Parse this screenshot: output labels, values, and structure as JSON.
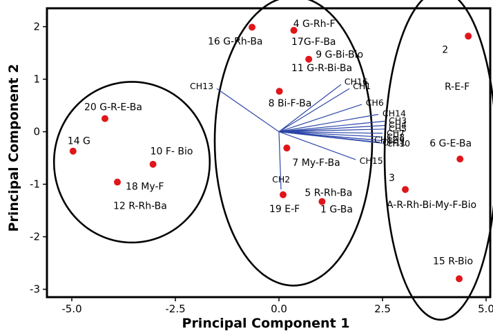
{
  "chart_data": {
    "type": "scatter",
    "xlabel": "Principal Component  1",
    "ylabel": "Principal Component 2",
    "xlim": [
      -5.6,
      5.1
    ],
    "ylim": [
      -3.15,
      2.35
    ],
    "xticks": [
      "-5.0",
      "-2.5",
      "0.0",
      "2.5",
      "5.0"
    ],
    "xtick_values": [
      -5.0,
      -2.5,
      0.0,
      2.5,
      5.0
    ],
    "yticks": [
      "2",
      "1",
      "0",
      "-1",
      "-2",
      "-3"
    ],
    "ytick_values": [
      2,
      1,
      0,
      -1,
      -2,
      -3
    ],
    "point_color": "#e0161b",
    "loading_color": "#2b45a8",
    "points": [
      {
        "x": 4.57,
        "y": 1.82,
        "label": "2"
      },
      {
        "x": 3.05,
        "y": -1.1,
        "label": "3"
      },
      {
        "x": 0.36,
        "y": 1.93,
        "label": "4 G-Rh-F"
      },
      {
        "x": 1.04,
        "y": -1.33,
        "label": "5 R-Rh-Ba"
      },
      {
        "x": 4.37,
        "y": -0.52,
        "label": "6 G-E-Ba"
      },
      {
        "x": 0.19,
        "y": -0.31,
        "label": "7 My-F-Ba"
      },
      {
        "x": 0.01,
        "y": 0.77,
        "label": "8 Bi-F-Ba"
      },
      {
        "x": 0.72,
        "y": 1.38,
        "label": "9 G-Bi-Bio"
      },
      {
        "x": -3.04,
        "y": -0.62,
        "label": "10 F- Bio"
      },
      {
        "x": -4.97,
        "y": -0.37,
        "label": "14 G"
      },
      {
        "x": 4.35,
        "y": -2.8,
        "label": "15 R-Bio"
      },
      {
        "x": -0.65,
        "y": 1.99,
        "label": "16 G-Rh-Ba"
      },
      {
        "x": -3.9,
        "y": -0.96,
        "label": "18 My-F"
      },
      {
        "x": 0.1,
        "y": -1.2,
        "label": "19 E-F"
      },
      {
        "x": -4.2,
        "y": 0.25,
        "label": "20 G-R-E-Ba"
      }
    ],
    "text_labels": [
      {
        "x": 4.0,
        "y": 0.8,
        "text": "R-E-F"
      },
      {
        "x": 0.3,
        "y": 1.65,
        "text": "17G-F-Ba"
      },
      {
        "x": 0.3,
        "y": 1.15,
        "text": "11 G-R-Bi-Ba"
      },
      {
        "x": -4.0,
        "y": -1.47,
        "text": "12 R-Rh-Ba"
      },
      {
        "x": 1.0,
        "y": -1.54,
        "text": "1 G-Ba"
      },
      {
        "x": 2.6,
        "y": -1.45,
        "text": "A-R-Rh-Bi-My-F-Bio"
      }
    ],
    "loadings": [
      {
        "name": "CH13",
        "x": -1.5,
        "y": 0.82
      },
      {
        "name": "CH16",
        "x": 1.5,
        "y": 0.9
      },
      {
        "name": "CH1",
        "x": 1.7,
        "y": 0.82
      },
      {
        "name": "CH6",
        "x": 2.0,
        "y": 0.52
      },
      {
        "name": "CH14",
        "x": 2.4,
        "y": 0.33
      },
      {
        "name": "CH3",
        "x": 2.55,
        "y": 0.2
      },
      {
        "name": "CH4",
        "x": 2.55,
        "y": 0.12
      },
      {
        "name": "CH5",
        "x": 2.55,
        "y": 0.05
      },
      {
        "name": "CH7",
        "x": 2.5,
        "y": -0.03
      },
      {
        "name": "CH8",
        "x": 2.5,
        "y": -0.1
      },
      {
        "name": "CH9",
        "x": 2.5,
        "y": -0.17
      },
      {
        "name": "CH10",
        "x": 2.5,
        "y": -0.22
      },
      {
        "name": "CH11",
        "x": 2.4,
        "y": -0.2
      },
      {
        "name": "CH12",
        "x": 2.2,
        "y": -0.15
      },
      {
        "name": "CH15",
        "x": 1.85,
        "y": -0.53
      },
      {
        "name": "CH2",
        "x": 0.05,
        "y": -1.1
      }
    ],
    "group_ellipses": [
      {
        "cx": -3.55,
        "cy": -0.58,
        "rx": 1.88,
        "ry": 1.53
      },
      {
        "cx": 0.35,
        "cy": -0.18,
        "rx": 1.9,
        "ry": 2.75
      },
      {
        "cx": 3.9,
        "cy": -0.45,
        "rx": 1.35,
        "ry": 3.13
      }
    ],
    "legend": "none",
    "grid": false
  }
}
